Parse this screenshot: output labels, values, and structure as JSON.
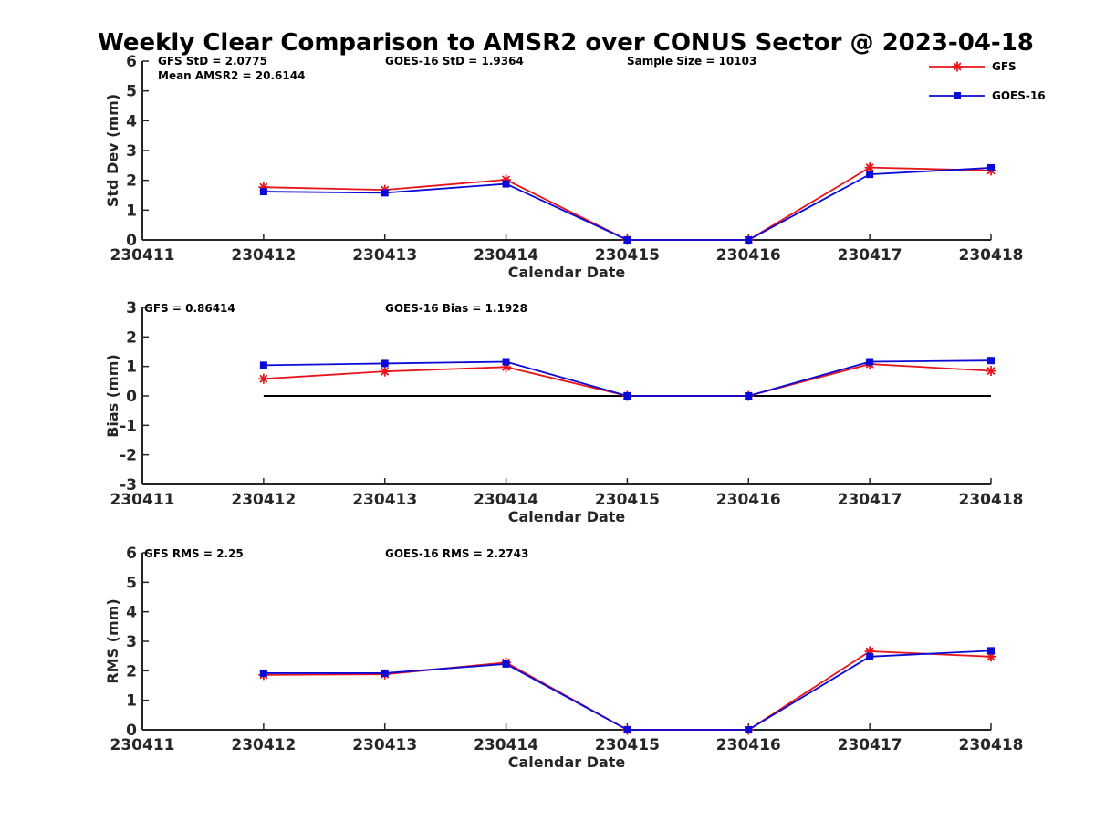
{
  "figure": {
    "title": "Weekly Clear Comparison to AMSR2 over CONUS Sector @ 2023-04-18"
  },
  "legend": {
    "placement": "top-right",
    "entries": [
      {
        "name": "GFS",
        "color": "#e8141a",
        "marker": "asterisk"
      },
      {
        "name": "GOES-16",
        "color": "#0a0ad8",
        "marker": "square"
      }
    ]
  },
  "chart_data": [
    {
      "type": "line",
      "xlabel": "Calendar Date",
      "ylabel": "Std Dev (mm)",
      "ylim": [
        0,
        6
      ],
      "yticks": [
        "0",
        "1",
        "2",
        "3",
        "4",
        "5",
        "6"
      ],
      "xticks": [
        "230411",
        "230412",
        "230413",
        "230414",
        "230415",
        "230416",
        "230417",
        "230418"
      ],
      "x": [
        "230412",
        "230413",
        "230414",
        "230415",
        "230416",
        "230417",
        "230418"
      ],
      "series": [
        {
          "name": "GFS",
          "color": "#e8141a",
          "marker": "asterisk",
          "values": [
            1.77,
            1.68,
            2.02,
            0.0,
            0.0,
            2.43,
            2.33
          ]
        },
        {
          "name": "GOES-16",
          "color": "#0a0ad8",
          "marker": "square",
          "values": [
            1.62,
            1.58,
            1.88,
            0.0,
            0.0,
            2.2,
            2.42
          ]
        }
      ],
      "zero_line": false,
      "annotations": {
        "gfs": "GFS StD = 2.0775",
        "goes": "GOES-16 StD = 1.9364",
        "sample": "Sample Size = 10103",
        "mean": "Mean AMSR2 = 20.6144"
      }
    },
    {
      "type": "line",
      "xlabel": "Calendar Date",
      "ylabel": "Bias (mm)",
      "ylim": [
        -3,
        3
      ],
      "yticks": [
        "-3",
        "-2",
        "-1",
        "0",
        "1",
        "2",
        "3"
      ],
      "xticks": [
        "230411",
        "230412",
        "230413",
        "230414",
        "230415",
        "230416",
        "230417",
        "230418"
      ],
      "x": [
        "230412",
        "230413",
        "230414",
        "230415",
        "230416",
        "230417",
        "230418"
      ],
      "series": [
        {
          "name": "GFS",
          "color": "#e8141a",
          "marker": "asterisk",
          "values": [
            0.58,
            0.83,
            0.98,
            0.0,
            0.0,
            1.08,
            0.85
          ]
        },
        {
          "name": "GOES-16",
          "color": "#0a0ad8",
          "marker": "square",
          "values": [
            1.04,
            1.1,
            1.16,
            0.0,
            0.0,
            1.16,
            1.2
          ]
        }
      ],
      "zero_line": true,
      "annotations": {
        "gfs": "GFS = 0.86414",
        "goes": "GOES-16 Bias  = 1.1928"
      }
    },
    {
      "type": "line",
      "xlabel": "Calendar Date",
      "ylabel": "RMS (mm)",
      "ylim": [
        0,
        6
      ],
      "yticks": [
        "0",
        "1",
        "2",
        "3",
        "4",
        "5",
        "6"
      ],
      "xticks": [
        "230411",
        "230412",
        "230413",
        "230414",
        "230415",
        "230416",
        "230417",
        "230418"
      ],
      "x": [
        "230412",
        "230413",
        "230414",
        "230415",
        "230416",
        "230417",
        "230418"
      ],
      "series": [
        {
          "name": "GFS",
          "color": "#e8141a",
          "marker": "asterisk",
          "values": [
            1.86,
            1.88,
            2.28,
            0.0,
            0.0,
            2.66,
            2.48
          ]
        },
        {
          "name": "GOES-16",
          "color": "#0a0ad8",
          "marker": "square",
          "values": [
            1.92,
            1.92,
            2.23,
            0.0,
            0.0,
            2.48,
            2.68
          ]
        }
      ],
      "zero_line": false,
      "annotations": {
        "gfs": "GFS RMS = 2.25",
        "goes": "GOES-16 RMS = 2.2743"
      }
    }
  ]
}
